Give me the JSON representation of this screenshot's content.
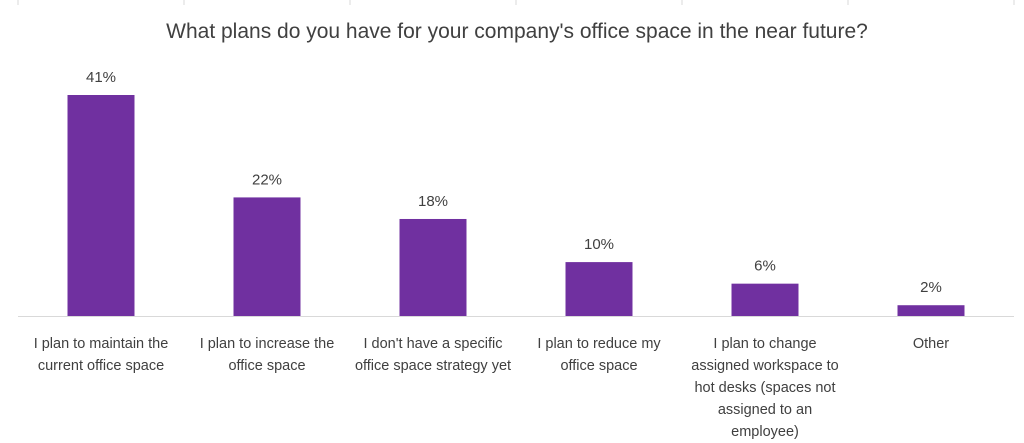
{
  "chart_data": {
    "type": "bar",
    "title": "What plans do you have for your company's office space in the near future?",
    "xlabel": "",
    "ylabel": "",
    "ylim": [
      0,
      41
    ],
    "grid": false,
    "legend": "none",
    "categories": [
      "I plan to maintain the current office space",
      "I plan to increase the office space",
      "I don't have a specific office space strategy yet",
      "I plan to reduce my office space",
      "I plan to change assigned workspace to hot desks (spaces not assigned to an employee)",
      "Other"
    ],
    "values": [
      41,
      22,
      18,
      10,
      6,
      2
    ],
    "data_labels": [
      "41%",
      "22%",
      "18%",
      "10%",
      "6%",
      "2%"
    ],
    "bar_color": "#7030A0",
    "axis_color": "#D9D9D9"
  }
}
